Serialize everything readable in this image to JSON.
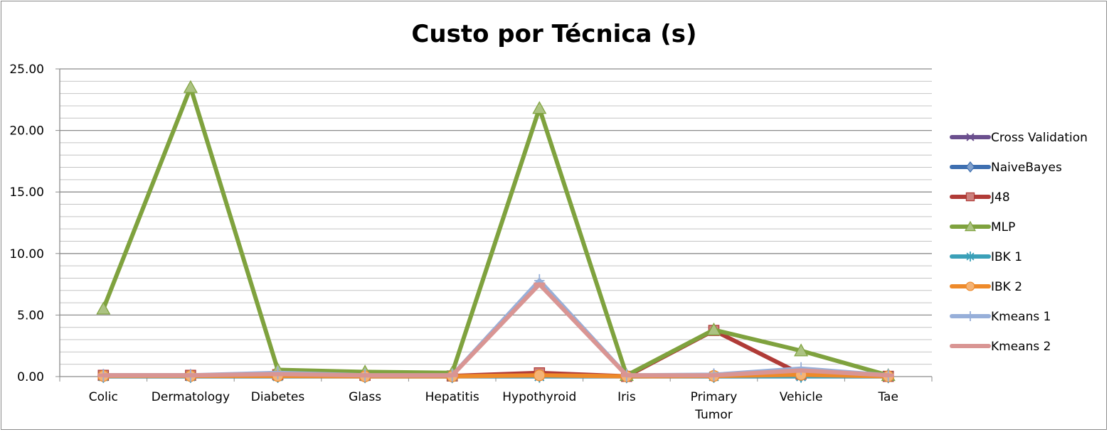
{
  "chart_data": {
    "type": "line",
    "title": "Custo por Técnica (s)",
    "xlabel": "",
    "ylabel": "",
    "categories": [
      [
        "Colic"
      ],
      [
        "Dermatology"
      ],
      [
        "Diabetes"
      ],
      [
        "Glass"
      ],
      [
        "Hepatitis"
      ],
      [
        "Hypothyroid"
      ],
      [
        "Iris"
      ],
      [
        "Primary",
        "Tumor"
      ],
      [
        "Vehicle"
      ],
      [
        "Tae"
      ]
    ],
    "y_ticks": [
      "0.00",
      "5.00",
      "10.00",
      "15.00",
      "20.00",
      "25.00"
    ],
    "ylim": [
      0,
      25
    ],
    "grid": "horizontal major and minor",
    "legend_position": "right",
    "series": [
      {
        "name": "Cross Validation",
        "color": "#6b4f8e",
        "marker": "x",
        "values": [
          0.02,
          0.02,
          0.02,
          0.02,
          0.02,
          0.02,
          0.02,
          0.02,
          0.02,
          0.02
        ]
      },
      {
        "name": "NaiveBayes",
        "color": "#3e6fb0",
        "marker": "diamond",
        "values": [
          0.05,
          0.05,
          0.05,
          0.03,
          0.03,
          0.1,
          0.02,
          0.05,
          0.1,
          0.02
        ]
      },
      {
        "name": "J48",
        "color": "#b03b37",
        "marker": "square",
        "values": [
          0.1,
          0.1,
          0.15,
          0.1,
          0.05,
          0.3,
          0.02,
          3.75,
          0.2,
          0.02
        ]
      },
      {
        "name": "MLP",
        "color": "#7fa23e",
        "marker": "triangle",
        "values": [
          5.5,
          23.5,
          0.55,
          0.38,
          0.3,
          21.8,
          0.1,
          3.8,
          2.1,
          0.1
        ]
      },
      {
        "name": "IBK 1",
        "color": "#3ba0b8",
        "marker": "star",
        "values": [
          0.02,
          0.02,
          0.02,
          0.02,
          0.02,
          0.02,
          0.02,
          0.02,
          0.02,
          0.02
        ]
      },
      {
        "name": "IBK 2",
        "color": "#ee8a2a",
        "marker": "circle",
        "values": [
          0.05,
          0.05,
          0.05,
          0.02,
          0.02,
          0.1,
          0.02,
          0.05,
          0.15,
          0.02
        ]
      },
      {
        "name": "Kmeans 1",
        "color": "#97afd9",
        "marker": "plus",
        "values": [
          0.1,
          0.1,
          0.3,
          0.1,
          0.1,
          7.8,
          0.1,
          0.15,
          0.65,
          0.1
        ]
      },
      {
        "name": "Kmeans 2",
        "color": "#d99593",
        "marker": "dash",
        "values": [
          0.1,
          0.1,
          0.2,
          0.1,
          0.1,
          7.5,
          0.1,
          0.1,
          0.5,
          0.1
        ]
      }
    ]
  }
}
